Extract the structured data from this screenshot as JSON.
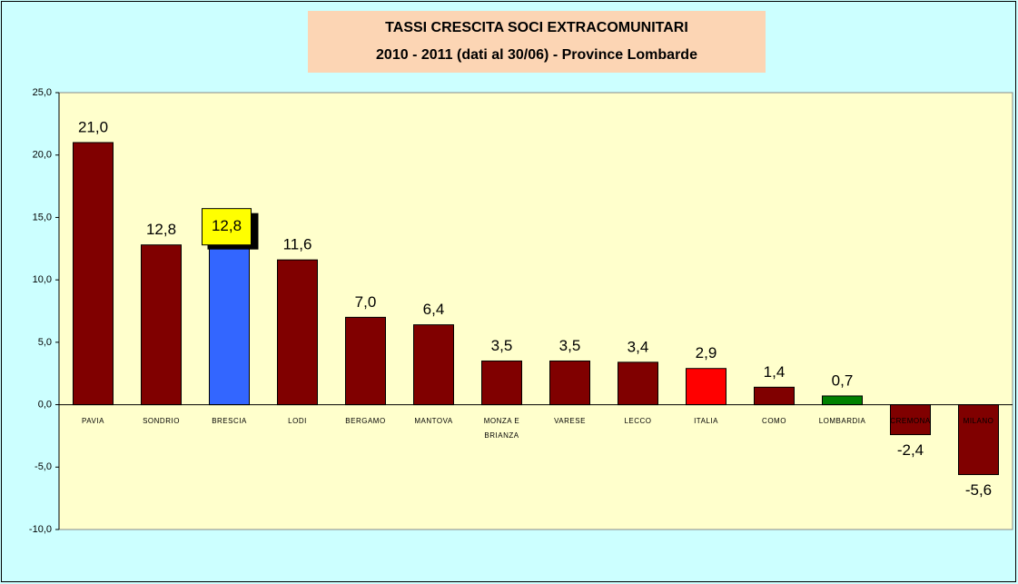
{
  "chart_data": {
    "type": "bar",
    "title": "TASSI CRESCITA SOCI  EXTRACOMUNITARI",
    "subtitle": "2010 - 2011 (dati al 30/06) - Province Lombarde",
    "categories": [
      "PAVIA",
      "SONDRIO",
      "BRESCIA",
      "LODI",
      "BERGAMO",
      "MANTOVA",
      "MONZA E BRIANZA",
      "VARESE",
      "LECCO",
      "ITALIA",
      "COMO",
      "LOMBARDIA",
      "CREMONA",
      "MILANO"
    ],
    "values": [
      21.0,
      12.8,
      12.8,
      11.6,
      7.0,
      6.4,
      3.5,
      3.5,
      3.4,
      2.9,
      1.4,
      0.7,
      -2.4,
      -5.6
    ],
    "value_labels": [
      "21,0",
      "12,8",
      "12,8",
      "11,6",
      "7,0",
      "6,4",
      "3,5",
      "3,5",
      "3,4",
      "2,9",
      "1,4",
      "0,7",
      "-2,4",
      "-5,6"
    ],
    "colors": [
      "#800000",
      "#800000",
      "#3366ff",
      "#800000",
      "#800000",
      "#800000",
      "#800000",
      "#800000",
      "#800000",
      "#ff0000",
      "#800000",
      "#008000",
      "#800000",
      "#800000"
    ],
    "ylim": [
      -10,
      25
    ],
    "yticks": [
      {
        "value": -10,
        "label": "-10,0"
      },
      {
        "value": -5,
        "label": "-5,0"
      },
      {
        "value": 0,
        "label": "0,0"
      },
      {
        "value": 5,
        "label": "5,0"
      },
      {
        "value": 10,
        "label": "10,0"
      },
      {
        "value": 15,
        "label": "15,0"
      },
      {
        "value": 20,
        "label": "20,0"
      },
      {
        "value": 25,
        "label": "25,0"
      }
    ],
    "grid": false
  }
}
